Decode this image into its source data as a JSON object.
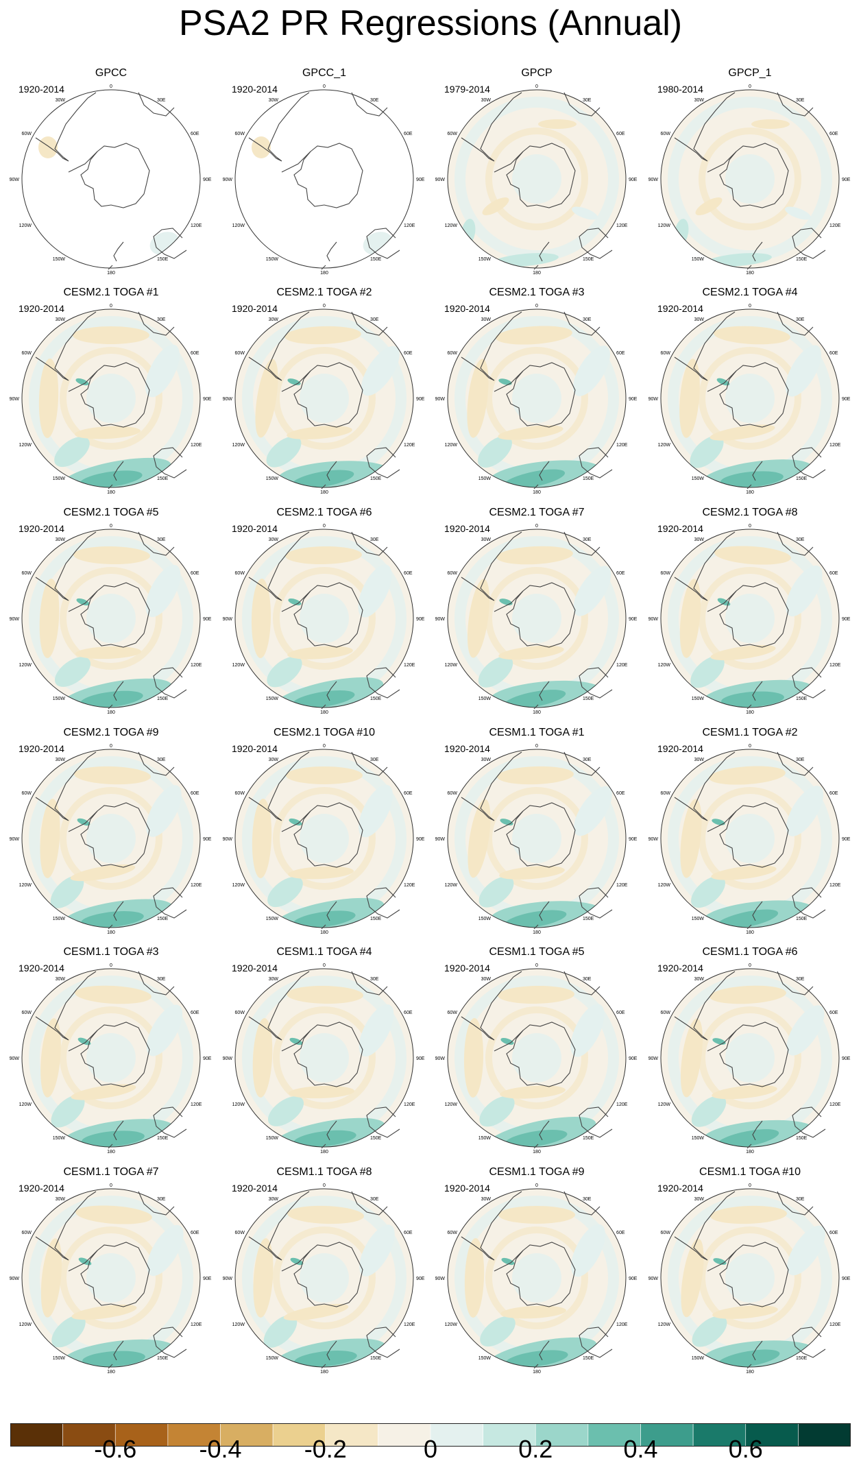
{
  "title": "PSA2 PR Regressions (Annual)",
  "lon_labels": {
    "top": "0",
    "bottom": "180",
    "right": [
      "30E",
      "60E",
      "90E",
      "120E",
      "150E"
    ],
    "left": [
      "30W",
      "60W",
      "90W",
      "120W",
      "150W"
    ]
  },
  "colorbar": {
    "colors": [
      "#5a3007",
      "#8a4c12",
      "#a8621a",
      "#c48434",
      "#d8ae62",
      "#ebd08f",
      "#f5e7c6",
      "#f6f1e6",
      "#e4f1ef",
      "#c6e8e1",
      "#9bd6ca",
      "#6bbfae",
      "#3d9d8c",
      "#1a7a6a",
      "#075b4d",
      "#023b32"
    ],
    "tick_labels": [
      "-0.6",
      "-0.4",
      "-0.2",
      "0",
      "0.2",
      "0.4",
      "0.6"
    ]
  },
  "panels": [
    {
      "title": "GPCC",
      "period": "1920-2014",
      "kind": "gpcc"
    },
    {
      "title": "GPCC_1",
      "period": "1920-2014",
      "kind": "gpcc"
    },
    {
      "title": "GPCP",
      "period": "1979-2014",
      "kind": "gpcp"
    },
    {
      "title": "GPCP_1",
      "period": "1980-2014",
      "kind": "gpcp"
    },
    {
      "title": "CESM2.1 TOGA #1",
      "period": "1920-2014",
      "kind": "model"
    },
    {
      "title": "CESM2.1 TOGA #2",
      "period": "1920-2014",
      "kind": "model"
    },
    {
      "title": "CESM2.1 TOGA #3",
      "period": "1920-2014",
      "kind": "model"
    },
    {
      "title": "CESM2.1 TOGA #4",
      "period": "1920-2014",
      "kind": "model"
    },
    {
      "title": "CESM2.1 TOGA #5",
      "period": "1920-2014",
      "kind": "model"
    },
    {
      "title": "CESM2.1 TOGA #6",
      "period": "1920-2014",
      "kind": "model"
    },
    {
      "title": "CESM2.1 TOGA #7",
      "period": "1920-2014",
      "kind": "model"
    },
    {
      "title": "CESM2.1 TOGA #8",
      "period": "1920-2014",
      "kind": "model"
    },
    {
      "title": "CESM2.1 TOGA #9",
      "period": "1920-2014",
      "kind": "model"
    },
    {
      "title": "CESM2.1 TOGA #10",
      "period": "1920-2014",
      "kind": "model"
    },
    {
      "title": "CESM1.1 TOGA #1",
      "period": "1920-2014",
      "kind": "model"
    },
    {
      "title": "CESM1.1 TOGA #2",
      "period": "1920-2014",
      "kind": "model"
    },
    {
      "title": "CESM1.1 TOGA #3",
      "period": "1920-2014",
      "kind": "model"
    },
    {
      "title": "CESM1.1 TOGA #4",
      "period": "1920-2014",
      "kind": "model"
    },
    {
      "title": "CESM1.1 TOGA #5",
      "period": "1920-2014",
      "kind": "model"
    },
    {
      "title": "CESM1.1 TOGA #6",
      "period": "1920-2014",
      "kind": "model"
    },
    {
      "title": "CESM1.1 TOGA #7",
      "period": "1920-2014",
      "kind": "model"
    },
    {
      "title": "CESM1.1 TOGA #8",
      "period": "1920-2014",
      "kind": "model"
    },
    {
      "title": "CESM1.1 TOGA #9",
      "period": "1920-2014",
      "kind": "model"
    },
    {
      "title": "CESM1.1 TOGA #10",
      "period": "1920-2014",
      "kind": "model"
    }
  ]
}
